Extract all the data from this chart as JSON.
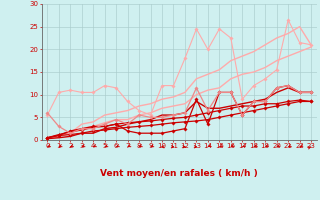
{
  "bg_color": "#cff0f0",
  "grid_color": "#aacccc",
  "xlabel": "Vent moyen/en rafales ( km/h )",
  "x": [
    0,
    1,
    2,
    3,
    4,
    5,
    6,
    7,
    8,
    9,
    10,
    11,
    12,
    13,
    14,
    15,
    16,
    17,
    18,
    19,
    20,
    21,
    22,
    23
  ],
  "lines": [
    {
      "y": [
        0.3,
        0.8,
        1.5,
        2.5,
        3.0,
        3.8,
        4.5,
        4.5,
        5.5,
        6.0,
        7.0,
        7.5,
        8.0,
        10.0,
        11.0,
        11.5,
        13.5,
        14.5,
        15.0,
        16.0,
        17.5,
        18.5,
        19.5,
        20.5
      ],
      "color": "#ffaaaa",
      "lw": 1.0,
      "marker": null
    },
    {
      "y": [
        0.3,
        0.8,
        1.5,
        3.5,
        4.0,
        5.5,
        6.0,
        6.5,
        7.5,
        8.0,
        9.0,
        9.5,
        10.5,
        13.5,
        14.5,
        15.5,
        17.5,
        18.5,
        19.5,
        21.0,
        22.5,
        23.5,
        25.0,
        21.0
      ],
      "color": "#ffaaaa",
      "lw": 1.0,
      "marker": null
    },
    {
      "y": [
        5.5,
        10.5,
        11.0,
        10.5,
        10.5,
        12.0,
        11.5,
        8.5,
        6.5,
        5.5,
        12.0,
        12.0,
        18.0,
        24.5,
        20.0,
        24.5,
        22.5,
        9.0,
        12.0,
        13.5,
        15.5,
        26.5,
        21.5,
        21.0
      ],
      "color": "#ffaaaa",
      "lw": 0.8,
      "marker": "D",
      "ms": 1.8
    },
    {
      "y": [
        0.5,
        1.0,
        1.2,
        1.5,
        2.0,
        2.2,
        2.5,
        2.8,
        3.0,
        3.2,
        3.5,
        3.8,
        4.0,
        4.2,
        4.5,
        5.0,
        5.5,
        6.0,
        6.5,
        7.0,
        7.5,
        8.0,
        8.5,
        8.5
      ],
      "color": "#cc0000",
      "lw": 0.9,
      "marker": "D",
      "ms": 1.8
    },
    {
      "y": [
        0.5,
        1.2,
        1.8,
        2.2,
        2.8,
        3.0,
        3.5,
        3.8,
        4.0,
        4.2,
        4.5,
        4.8,
        5.0,
        5.5,
        6.0,
        6.5,
        7.0,
        7.5,
        7.5,
        8.0,
        8.0,
        8.5,
        8.8,
        8.5
      ],
      "color": "#cc0000",
      "lw": 0.9,
      "marker": "D",
      "ms": 1.8
    },
    {
      "y": [
        0.3,
        0.5,
        0.8,
        1.5,
        1.5,
        2.5,
        2.8,
        3.5,
        4.0,
        4.5,
        5.5,
        5.5,
        6.0,
        8.5,
        7.0,
        7.0,
        7.5,
        8.0,
        8.5,
        9.0,
        10.5,
        11.5,
        10.5,
        10.5
      ],
      "color": "#cc0000",
      "lw": 1.0,
      "marker": null
    },
    {
      "y": [
        0.5,
        1.0,
        2.0,
        2.5,
        3.0,
        3.0,
        3.5,
        2.0,
        1.5,
        1.5,
        1.5,
        2.0,
        2.5,
        9.0,
        3.5,
        10.5,
        10.5,
        5.5,
        8.5,
        8.5,
        11.5,
        12.0,
        10.5,
        10.5
      ],
      "color": "#cc0000",
      "lw": 0.9,
      "marker": "D",
      "ms": 1.8
    },
    {
      "y": [
        6.0,
        3.0,
        1.5,
        2.5,
        2.5,
        3.5,
        4.5,
        3.5,
        5.5,
        5.0,
        5.0,
        5.5,
        6.0,
        11.5,
        6.5,
        10.5,
        10.5,
        5.5,
        8.5,
        8.5,
        11.5,
        12.0,
        10.5,
        10.5
      ],
      "color": "#ee8888",
      "lw": 0.9,
      "marker": "D",
      "ms": 1.8
    }
  ],
  "xlim": [
    -0.5,
    23.5
  ],
  "ylim": [
    0,
    30
  ],
  "xticks": [
    0,
    1,
    2,
    3,
    4,
    5,
    6,
    7,
    8,
    9,
    10,
    11,
    12,
    13,
    14,
    15,
    16,
    17,
    18,
    19,
    20,
    21,
    22,
    23
  ],
  "yticks": [
    0,
    5,
    10,
    15,
    20,
    25,
    30
  ],
  "tick_fontsize": 5.0,
  "xlabel_fontsize": 6.5,
  "tick_color": "#cc0000",
  "xlabel_color": "#cc0000",
  "arrow_angles": [
    225,
    225,
    225,
    225,
    225,
    225,
    225,
    225,
    225,
    225,
    270,
    90,
    90,
    90,
    225,
    225,
    225,
    225,
    225,
    225,
    225,
    225,
    225,
    45
  ]
}
